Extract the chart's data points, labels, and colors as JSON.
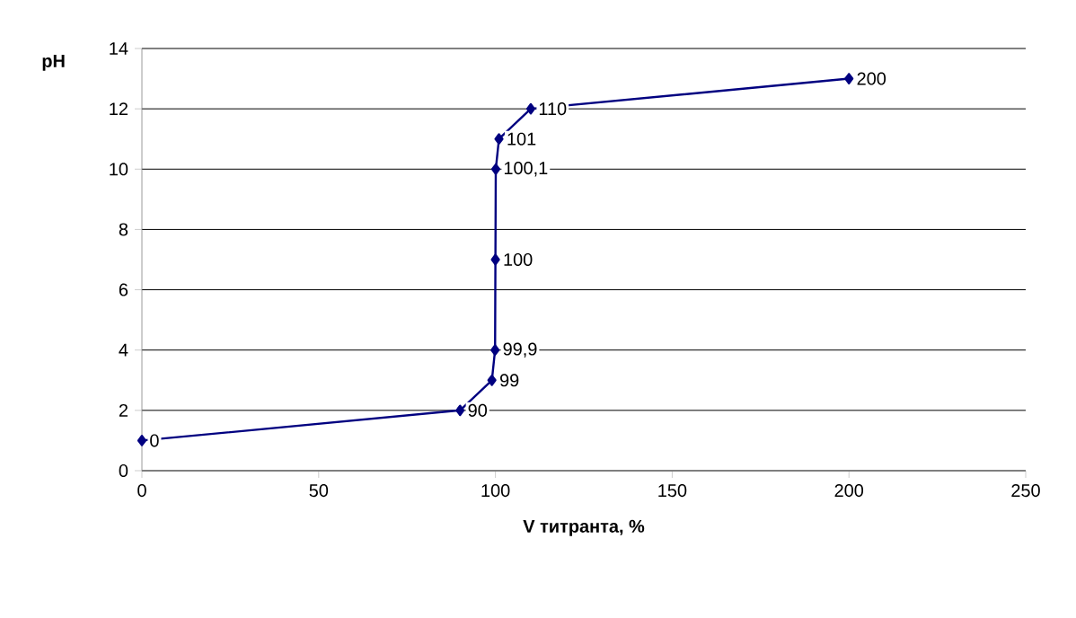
{
  "chart_data": {
    "type": "line",
    "xlabel": "V титранта, %",
    "ylabel": "pH",
    "x": [
      0,
      90,
      99,
      99.9,
      100,
      100.1,
      101,
      110,
      200
    ],
    "series": [
      {
        "color": "#000080",
        "values": [
          1,
          2,
          3,
          4,
          7,
          10,
          11,
          12,
          13
        ]
      }
    ],
    "xlim": [
      0,
      250
    ],
    "ylim": [
      0,
      14
    ],
    "xticks": [
      0,
      50,
      100,
      150,
      200,
      250
    ],
    "yticks": [
      0,
      2,
      4,
      6,
      8,
      10,
      12,
      14
    ],
    "grid": "y",
    "marker": "diamond",
    "line_style": "solid",
    "annotations": [
      {
        "text": "0",
        "x": 0,
        "y": 1
      },
      {
        "text": "90",
        "x": 90,
        "y": 2
      },
      {
        "text": "99",
        "x": 99,
        "y": 3
      },
      {
        "text": "99,9",
        "x": 99.9,
        "y": 4
      },
      {
        "text": "100",
        "x": 100,
        "y": 7
      },
      {
        "text": "100,1",
        "x": 100.1,
        "y": 10
      },
      {
        "text": "101",
        "x": 101,
        "y": 11
      },
      {
        "text": "110",
        "x": 110,
        "y": 12
      },
      {
        "text": "200",
        "x": 200,
        "y": 13
      }
    ]
  }
}
